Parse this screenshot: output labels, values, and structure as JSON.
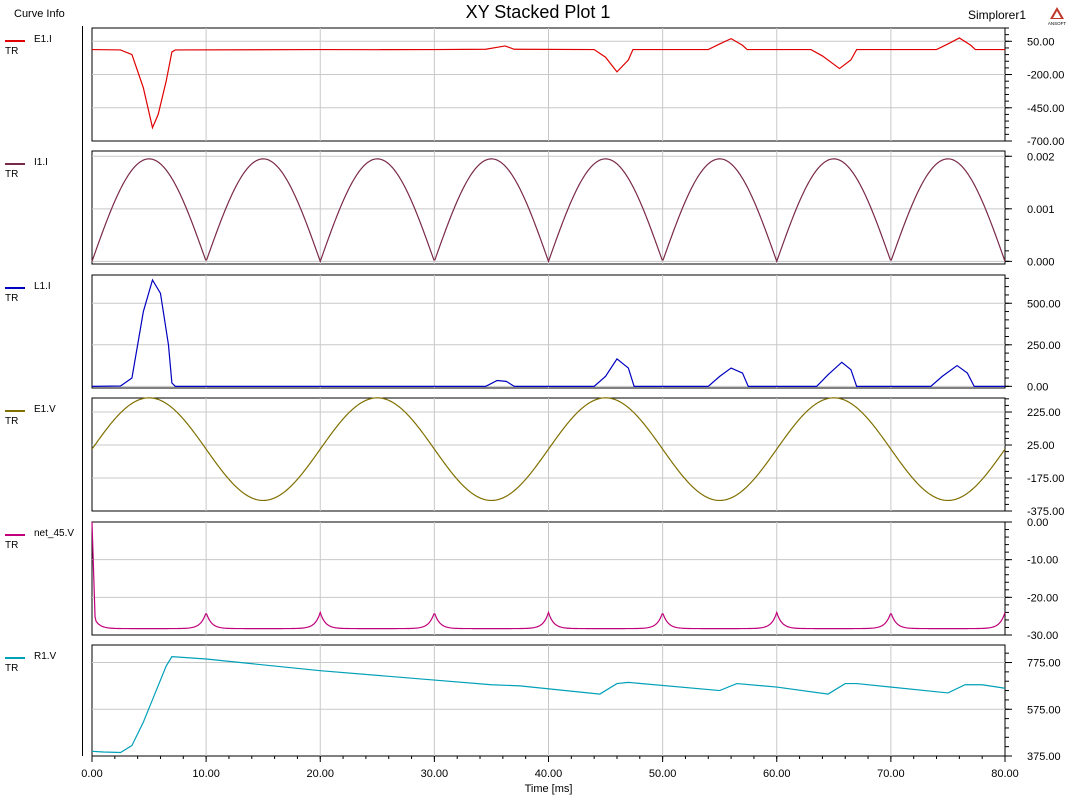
{
  "header": {
    "title": "XY Stacked Plot 1",
    "left_label": "Curve Info",
    "right_label": "Simplorer1",
    "logo_text": "ANSOFT",
    "logo_color": "#c0392b"
  },
  "chart_data": {
    "type": "line",
    "title": "XY Stacked Plot 1",
    "xlabel": "Time [ms]",
    "xlim": [
      0,
      80
    ],
    "xticks": [
      "0.00",
      "10.00",
      "20.00",
      "30.00",
      "40.00",
      "50.00",
      "60.00",
      "70.00",
      "80.00"
    ],
    "grid": true,
    "panels": [
      {
        "name": "E1.I",
        "sub": "TR",
        "color": "#e00000",
        "ylim": [
          -700,
          150
        ],
        "yticks": [
          "50.00",
          "-200.00",
          "-450.00",
          "-700.00"
        ],
        "ytick_values": [
          50,
          -200,
          -450,
          -700
        ],
        "series": [
          [
            0,
            -12
          ],
          [
            2.5,
            -15
          ],
          [
            3.5,
            -50
          ],
          [
            4.5,
            -300
          ],
          [
            5.3,
            -600
          ],
          [
            5.8,
            -500
          ],
          [
            6.5,
            -250
          ],
          [
            7,
            -30
          ],
          [
            7.3,
            -15
          ],
          [
            20,
            -12
          ],
          [
            25,
            -13
          ],
          [
            30,
            -12
          ],
          [
            34.5,
            -10
          ],
          [
            35.5,
            5
          ],
          [
            36.2,
            15
          ],
          [
            37,
            -10
          ],
          [
            44,
            -12
          ],
          [
            45,
            -70
          ],
          [
            46,
            -180
          ],
          [
            47,
            -90
          ],
          [
            47.4,
            -12
          ],
          [
            54,
            -12
          ],
          [
            55,
            30
          ],
          [
            56,
            70
          ],
          [
            57,
            20
          ],
          [
            57.4,
            -12
          ],
          [
            63,
            -12
          ],
          [
            64,
            -60
          ],
          [
            65.5,
            -155
          ],
          [
            66.5,
            -90
          ],
          [
            67,
            -12
          ],
          [
            74,
            -12
          ],
          [
            75,
            30
          ],
          [
            76,
            75
          ],
          [
            77,
            20
          ],
          [
            77.4,
            -12
          ],
          [
            80,
            -12
          ]
        ]
      },
      {
        "name": "I1.I",
        "sub": "TR",
        "color": "#7a2a4a",
        "ylim": [
          -5e-05,
          0.0021
        ],
        "yticks": [
          "0.002",
          "0.001",
          "0.000"
        ],
        "ytick_values": [
          0.002,
          0.001,
          0.0
        ],
        "function": "abs_sine",
        "amplitude": 0.00195,
        "period_ms": 20
      },
      {
        "name": "L1.I",
        "sub": "TR",
        "color": "#0000c0",
        "ylim": [
          -10,
          670
        ],
        "yticks": [
          "500.00",
          "250.00",
          "0.00"
        ],
        "ytick_values": [
          500,
          250,
          0
        ],
        "series": [
          [
            0,
            0
          ],
          [
            2.5,
            2
          ],
          [
            3.5,
            50
          ],
          [
            4.5,
            450
          ],
          [
            5.3,
            640
          ],
          [
            6,
            560
          ],
          [
            6.7,
            250
          ],
          [
            7,
            20
          ],
          [
            7.3,
            0
          ],
          [
            34.5,
            0
          ],
          [
            35.5,
            35
          ],
          [
            36.3,
            30
          ],
          [
            37,
            0
          ],
          [
            44,
            0
          ],
          [
            45,
            60
          ],
          [
            46,
            165
          ],
          [
            47,
            110
          ],
          [
            47.5,
            0
          ],
          [
            54,
            0
          ],
          [
            55,
            60
          ],
          [
            56,
            110
          ],
          [
            57,
            80
          ],
          [
            57.5,
            0
          ],
          [
            63.5,
            0
          ],
          [
            64.5,
            70
          ],
          [
            65.7,
            145
          ],
          [
            66.5,
            100
          ],
          [
            67,
            0
          ],
          [
            73.5,
            0
          ],
          [
            74.5,
            60
          ],
          [
            75.8,
            125
          ],
          [
            76.7,
            80
          ],
          [
            77.3,
            0
          ],
          [
            80,
            0
          ]
        ]
      },
      {
        "name": "E1.V",
        "sub": "TR",
        "color": "#807000",
        "ylim": [
          -375,
          310
        ],
        "yticks": [
          "225.00",
          "25.00",
          "-175.00",
          "-375.00"
        ],
        "ytick_values": [
          225,
          25,
          -175,
          -375
        ],
        "function": "sine",
        "amplitude": 311,
        "period_ms": 20
      },
      {
        "name": "net_45.V",
        "sub": "TR",
        "color": "#c0007a",
        "ylim": [
          -30,
          0
        ],
        "yticks": [
          "0.00",
          "-10.00",
          "-20.00",
          "-30.00"
        ],
        "ytick_values": [
          0,
          -10,
          -20,
          -30
        ],
        "function": "ripple",
        "base": -28.3,
        "peak": -24,
        "period_ms": 10
      },
      {
        "name": "R1.V",
        "sub": "TR",
        "color": "#00a0b8",
        "ylim": [
          375,
          850
        ],
        "yticks": [
          "775.00",
          "575.00",
          "375.00"
        ],
        "ytick_values": [
          775,
          575,
          375
        ],
        "series": [
          [
            0,
            395
          ],
          [
            1,
            392
          ],
          [
            2.5,
            390
          ],
          [
            3.5,
            420
          ],
          [
            4.5,
            520
          ],
          [
            5.5,
            640
          ],
          [
            6.5,
            760
          ],
          [
            7,
            800
          ],
          [
            10,
            790
          ],
          [
            20,
            740
          ],
          [
            30,
            700
          ],
          [
            35,
            680
          ],
          [
            37.5,
            675
          ],
          [
            44.5,
            640
          ],
          [
            46,
            685
          ],
          [
            47,
            690
          ],
          [
            55,
            655
          ],
          [
            56.5,
            685
          ],
          [
            60,
            670
          ],
          [
            64.5,
            640
          ],
          [
            66,
            685
          ],
          [
            67,
            685
          ],
          [
            75,
            645
          ],
          [
            76.5,
            680
          ],
          [
            78,
            680
          ],
          [
            80,
            665
          ]
        ]
      }
    ]
  }
}
